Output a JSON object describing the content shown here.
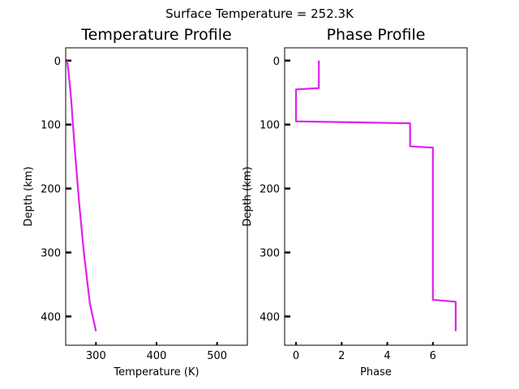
{
  "figure": {
    "suptitle": "Surface Temperature = 252.3K"
  },
  "chart_data": [
    {
      "type": "line",
      "title": "Temperature Profile",
      "xlabel": "Temperature (K)",
      "ylabel": "Depth (km)",
      "xlim": [
        250,
        550
      ],
      "ylim": [
        445,
        -20
      ],
      "y_inverted": true,
      "xticks": [
        300,
        400,
        500
      ],
      "yticks": [
        0,
        100,
        200,
        300,
        400
      ],
      "grid": false,
      "line_color": "#e020ee",
      "series": [
        {
          "x": [
            252.3,
            255,
            257,
            259,
            262,
            266,
            272,
            280,
            290,
            300
          ],
          "y": [
            0,
            20,
            40,
            60,
            100,
            150,
            220,
            300,
            380,
            423
          ]
        }
      ]
    },
    {
      "type": "line",
      "title": "Phase Profile",
      "xlabel": "Phase",
      "ylabel": "Depth (km)",
      "xlim": [
        -0.5,
        7.5
      ],
      "ylim": [
        445,
        -20
      ],
      "y_inverted": true,
      "xticks": [
        0,
        2,
        4,
        6
      ],
      "yticks": [
        0,
        100,
        200,
        300,
        400
      ],
      "grid": false,
      "line_color": "#e020ee",
      "series": [
        {
          "x": [
            1,
            1,
            0,
            0,
            5,
            5,
            6,
            6,
            7,
            7
          ],
          "y": [
            0,
            43,
            45,
            95,
            98,
            134,
            136,
            374,
            377,
            423
          ]
        }
      ]
    }
  ]
}
